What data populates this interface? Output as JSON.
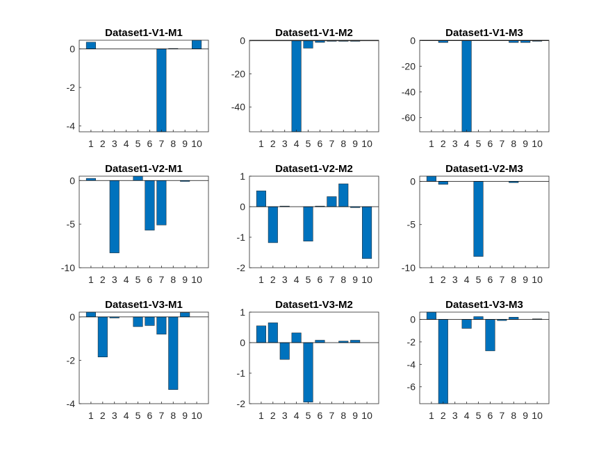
{
  "figure": {
    "bar_color": "#0072BD",
    "axes_color": "#262626",
    "background": "#ffffff"
  },
  "chart_data": [
    {
      "type": "bar",
      "title": "Dataset1-V1-M1",
      "categories": [
        "1",
        "2",
        "3",
        "4",
        "5",
        "6",
        "7",
        "8",
        "9",
        "10"
      ],
      "values": [
        0.35,
        0,
        0,
        0,
        0,
        0,
        -4.3,
        0.02,
        0,
        0.45
      ],
      "ylim": [
        -4.3,
        0.45
      ],
      "yticks": [
        0,
        -2,
        -4
      ],
      "grid": false
    },
    {
      "type": "bar",
      "title": "Dataset1-V1-M2",
      "categories": [
        "1",
        "2",
        "3",
        "4",
        "5",
        "6",
        "7",
        "8",
        "9",
        "10"
      ],
      "values": [
        0,
        0,
        0,
        -55,
        -4.5,
        -1,
        -0.3,
        -0.2,
        -0.1,
        0
      ],
      "ylim": [
        -55,
        0.3
      ],
      "yticks": [
        0,
        -20,
        -40
      ],
      "grid": false
    },
    {
      "type": "bar",
      "title": "Dataset1-V1-M3",
      "categories": [
        "1",
        "2",
        "3",
        "4",
        "5",
        "6",
        "7",
        "8",
        "9",
        "10"
      ],
      "values": [
        0,
        -1.5,
        0,
        -71,
        0,
        0,
        0,
        -1.5,
        -1.5,
        -0.5
      ],
      "ylim": [
        -71,
        0.3
      ],
      "yticks": [
        0,
        -20,
        -40,
        -60
      ],
      "grid": false
    },
    {
      "type": "bar",
      "title": "Dataset1-V2-M1",
      "categories": [
        "1",
        "2",
        "3",
        "4",
        "5",
        "6",
        "7",
        "8",
        "9",
        "10"
      ],
      "values": [
        0.25,
        0,
        -8.3,
        0,
        0.5,
        -5.7,
        -5.1,
        0,
        -0.1,
        0
      ],
      "ylim": [
        -10,
        0.5
      ],
      "yticks": [
        0,
        -5,
        -10
      ],
      "grid": false
    },
    {
      "type": "bar",
      "title": "Dataset1-V2-M2",
      "categories": [
        "1",
        "2",
        "3",
        "4",
        "5",
        "6",
        "7",
        "8",
        "9",
        "10"
      ],
      "values": [
        0.52,
        -1.18,
        0.02,
        0,
        -1.13,
        0.02,
        0.33,
        0.75,
        -0.03,
        -1.7
      ],
      "ylim": [
        -2,
        1
      ],
      "yticks": [
        1,
        0,
        -1,
        -2
      ],
      "grid": false
    },
    {
      "type": "bar",
      "title": "Dataset1-V2-M3",
      "categories": [
        "1",
        "2",
        "3",
        "4",
        "5",
        "6",
        "7",
        "8",
        "9",
        "10"
      ],
      "values": [
        0.6,
        -0.35,
        0,
        0,
        -8.7,
        0,
        0,
        -0.15,
        0,
        0
      ],
      "ylim": [
        -10,
        0.6
      ],
      "yticks": [
        0,
        -5,
        -10
      ],
      "grid": false
    },
    {
      "type": "bar",
      "title": "Dataset1-V3-M1",
      "categories": [
        "1",
        "2",
        "3",
        "4",
        "5",
        "6",
        "7",
        "8",
        "9",
        "10"
      ],
      "values": [
        0.22,
        -1.85,
        -0.05,
        0,
        -0.45,
        -0.4,
        -0.8,
        -3.35,
        0.2,
        0
      ],
      "ylim": [
        -4,
        0.22
      ],
      "yticks": [
        0,
        -2,
        -4
      ],
      "grid": false
    },
    {
      "type": "bar",
      "title": "Dataset1-V3-M2",
      "categories": [
        "1",
        "2",
        "3",
        "4",
        "5",
        "6",
        "7",
        "8",
        "9",
        "10"
      ],
      "values": [
        0.55,
        0.65,
        -0.55,
        0.32,
        -1.95,
        0.08,
        0,
        0.05,
        0.08,
        0
      ],
      "ylim": [
        -2,
        1
      ],
      "yticks": [
        1,
        0,
        -1,
        -2
      ],
      "grid": false
    },
    {
      "type": "bar",
      "title": "Dataset1-V3-M3",
      "categories": [
        "1",
        "2",
        "3",
        "4",
        "5",
        "6",
        "7",
        "8",
        "9",
        "10"
      ],
      "values": [
        0.65,
        -7.5,
        0,
        -0.8,
        0.25,
        -2.8,
        -0.1,
        0.2,
        0,
        0.05
      ],
      "ylim": [
        -7.5,
        0.65
      ],
      "yticks": [
        0,
        -2,
        -4,
        -6
      ],
      "grid": false
    }
  ]
}
